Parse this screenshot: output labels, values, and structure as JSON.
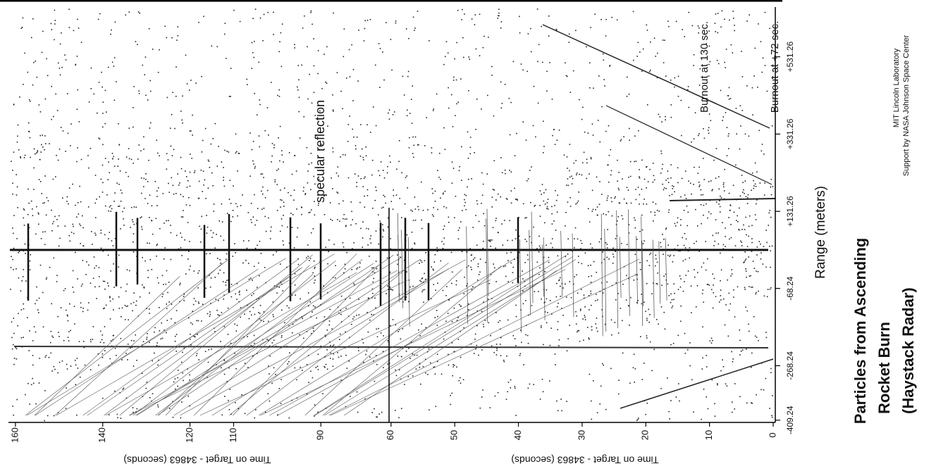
{
  "title_lines": [
    "Particles from Ascending",
    "Rocket Burn",
    "(Haystack Radar)"
  ],
  "credits": [
    "MIT Lincoln Laboratory",
    "Support by NASA Johnson Space Center"
  ],
  "chart_data": [
    {
      "type": "scatter",
      "xlabel": "Time on Target - 34863 (seconds)",
      "xlim": [
        161.6,
        74.7
      ],
      "xticks": [
        160,
        140,
        120,
        110,
        90
      ],
      "annotations": [
        "specular reflection"
      ]
    },
    {
      "type": "scatter",
      "xlabel": "Time on Target - 34863 (seconds)",
      "xlim": [
        60.2,
        0
      ],
      "xticks": [
        60,
        50,
        40,
        30,
        20,
        10,
        0
      ],
      "ylabel": "Range (meters)",
      "ylim": [
        -415,
        660
      ],
      "yticks": [
        -409.24,
        -268.24,
        -68.24,
        {
          "value": 131.26,
          "label": "+131.26"
        },
        {
          "value": 331.26,
          "label": "+331.26"
        },
        {
          "value": 531.26,
          "label": "+531.26"
        }
      ],
      "annotations": [
        "Burnout at 130 sec.",
        "Burnout at +72 sec."
      ]
    }
  ]
}
